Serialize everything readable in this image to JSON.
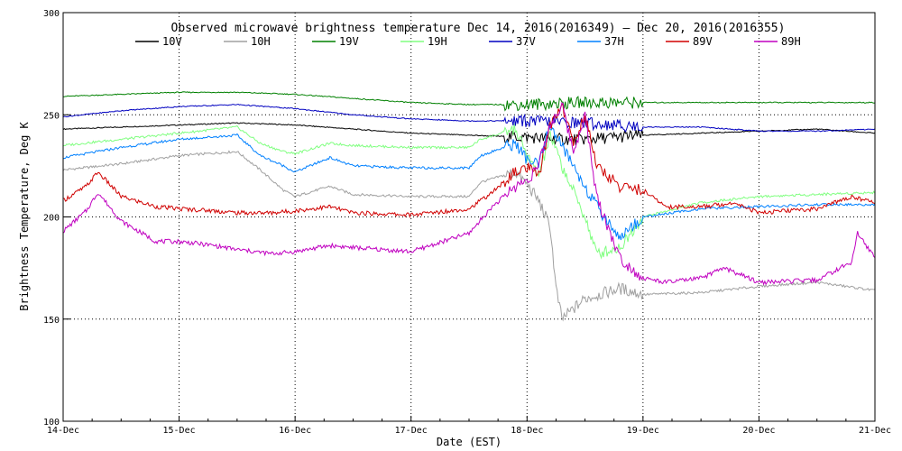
{
  "chart_data": {
    "type": "line",
    "title": "Observed microwave brightness temperature Dec 14, 2016(2016349) – Dec 20, 2016(2016355)",
    "xlabel": "Date (EST)",
    "ylabel": "Brightness Temperature, Deg K",
    "xlim": [
      0,
      7
    ],
    "ylim": [
      100,
      300
    ],
    "grid": "dotted",
    "legend_position": "top",
    "x_ticks": [
      {
        "value": 0,
        "label": "14-Dec"
      },
      {
        "value": 1,
        "label": "15-Dec"
      },
      {
        "value": 2,
        "label": "16-Dec"
      },
      {
        "value": 3,
        "label": "17-Dec"
      },
      {
        "value": 4,
        "label": "18-Dec"
      },
      {
        "value": 5,
        "label": "19-Dec"
      },
      {
        "value": 6,
        "label": "20-Dec"
      },
      {
        "value": 7,
        "label": "21-Dec"
      }
    ],
    "y_ticks": [
      {
        "value": 100,
        "label": "100"
      },
      {
        "value": 150,
        "label": "150"
      },
      {
        "value": 200,
        "label": "200"
      },
      {
        "value": 250,
        "label": "250"
      },
      {
        "value": 300,
        "label": "300"
      }
    ],
    "series": [
      {
        "name": "10V",
        "color": "#000000",
        "x": [
          0,
          0.5,
          1,
          1.5,
          2,
          2.5,
          3,
          3.5,
          4,
          4.3,
          4.5,
          5,
          5.5,
          6,
          6.5,
          7
        ],
        "y": [
          243,
          244,
          245,
          246,
          245,
          243,
          241,
          240,
          239,
          238,
          238,
          240,
          241,
          242,
          243,
          241
        ]
      },
      {
        "name": "10H",
        "color": "#a0a0a0",
        "x": [
          0,
          0.5,
          1,
          1.5,
          1.7,
          1.9,
          2,
          2.3,
          2.5,
          3,
          3.5,
          3.6,
          3.9,
          4,
          4.1,
          4.2,
          4.25,
          4.3,
          4.5,
          4.8,
          5,
          5.5,
          6,
          6.5,
          7
        ],
        "y": [
          223,
          226,
          230,
          232,
          223,
          213,
          210,
          215,
          211,
          210,
          210,
          217,
          222,
          216,
          208,
          195,
          165,
          150,
          160,
          165,
          162,
          163,
          166,
          168,
          164
        ]
      },
      {
        "name": "19V",
        "color": "#008000",
        "x": [
          0,
          0.5,
          1,
          1.5,
          2,
          2.5,
          3,
          3.5,
          4,
          4.5,
          5,
          5.5,
          6,
          6.5,
          7
        ],
        "y": [
          259,
          260,
          261,
          261,
          260,
          258,
          256,
          255,
          255,
          256,
          256,
          256,
          256,
          256,
          256
        ]
      },
      {
        "name": "19H",
        "color": "#80ff80",
        "x": [
          0,
          0.5,
          1,
          1.5,
          1.7,
          1.9,
          2,
          2.3,
          2.5,
          3,
          3.5,
          3.6,
          3.9,
          4,
          4.1,
          4.2,
          4.3,
          4.5,
          4.6,
          4.8,
          5,
          5.5,
          6,
          6.5,
          7
        ],
        "y": [
          235,
          238,
          241,
          244,
          236,
          232,
          231,
          236,
          235,
          234,
          234,
          238,
          243,
          230,
          220,
          240,
          225,
          200,
          182,
          185,
          200,
          207,
          210,
          211,
          212
        ]
      },
      {
        "name": "37V",
        "color": "#0000c0",
        "x": [
          0,
          0.5,
          1,
          1.5,
          2,
          2.5,
          3,
          3.5,
          4,
          4.5,
          5,
          5.5,
          6,
          6.5,
          7
        ],
        "y": [
          249,
          252,
          254,
          255,
          253,
          250,
          248,
          247,
          247,
          246,
          244,
          244,
          242,
          242,
          243
        ]
      },
      {
        "name": "37H",
        "color": "#0080ff",
        "x": [
          0,
          0.5,
          1,
          1.5,
          1.7,
          1.9,
          2,
          2.3,
          2.5,
          3,
          3.5,
          3.6,
          3.9,
          4,
          4.1,
          4.2,
          4.3,
          4.5,
          4.6,
          4.8,
          5,
          5.5,
          6,
          6.5,
          7
        ],
        "y": [
          229,
          234,
          238,
          240,
          230,
          225,
          222,
          229,
          225,
          224,
          224,
          230,
          236,
          228,
          225,
          245,
          235,
          215,
          205,
          190,
          200,
          204,
          205,
          206,
          206
        ]
      },
      {
        "name": "89V",
        "color": "#d00000",
        "x": [
          0,
          0.2,
          0.3,
          0.5,
          0.8,
          1,
          1.3,
          1.5,
          1.8,
          2,
          2.3,
          2.5,
          3,
          3.5,
          3.7,
          3.9,
          4,
          4.1,
          4.2,
          4.3,
          4.4,
          4.5,
          4.6,
          4.8,
          5,
          5.2,
          5.5,
          5.8,
          6,
          6.5,
          6.8,
          7
        ],
        "y": [
          208,
          215,
          222,
          210,
          205,
          204,
          203,
          202,
          202,
          203,
          205,
          202,
          201,
          204,
          212,
          222,
          224,
          220,
          245,
          255,
          236,
          250,
          225,
          215,
          213,
          205,
          205,
          207,
          202,
          204,
          210,
          207
        ]
      },
      {
        "name": "89H",
        "color": "#c000c0",
        "x": [
          0,
          0.2,
          0.3,
          0.5,
          0.8,
          1,
          1.3,
          1.5,
          1.8,
          2,
          2.3,
          2.5,
          3,
          3.5,
          3.7,
          3.9,
          4,
          4.1,
          4.2,
          4.3,
          4.4,
          4.5,
          4.6,
          4.8,
          5,
          5.2,
          5.5,
          5.7,
          6,
          6.5,
          6.8,
          6.85,
          7
        ],
        "y": [
          193,
          203,
          212,
          198,
          188,
          188,
          186,
          184,
          182,
          183,
          186,
          185,
          183,
          192,
          205,
          215,
          218,
          225,
          245,
          255,
          232,
          250,
          210,
          180,
          170,
          168,
          170,
          175,
          168,
          169,
          178,
          192,
          180
        ]
      }
    ]
  }
}
